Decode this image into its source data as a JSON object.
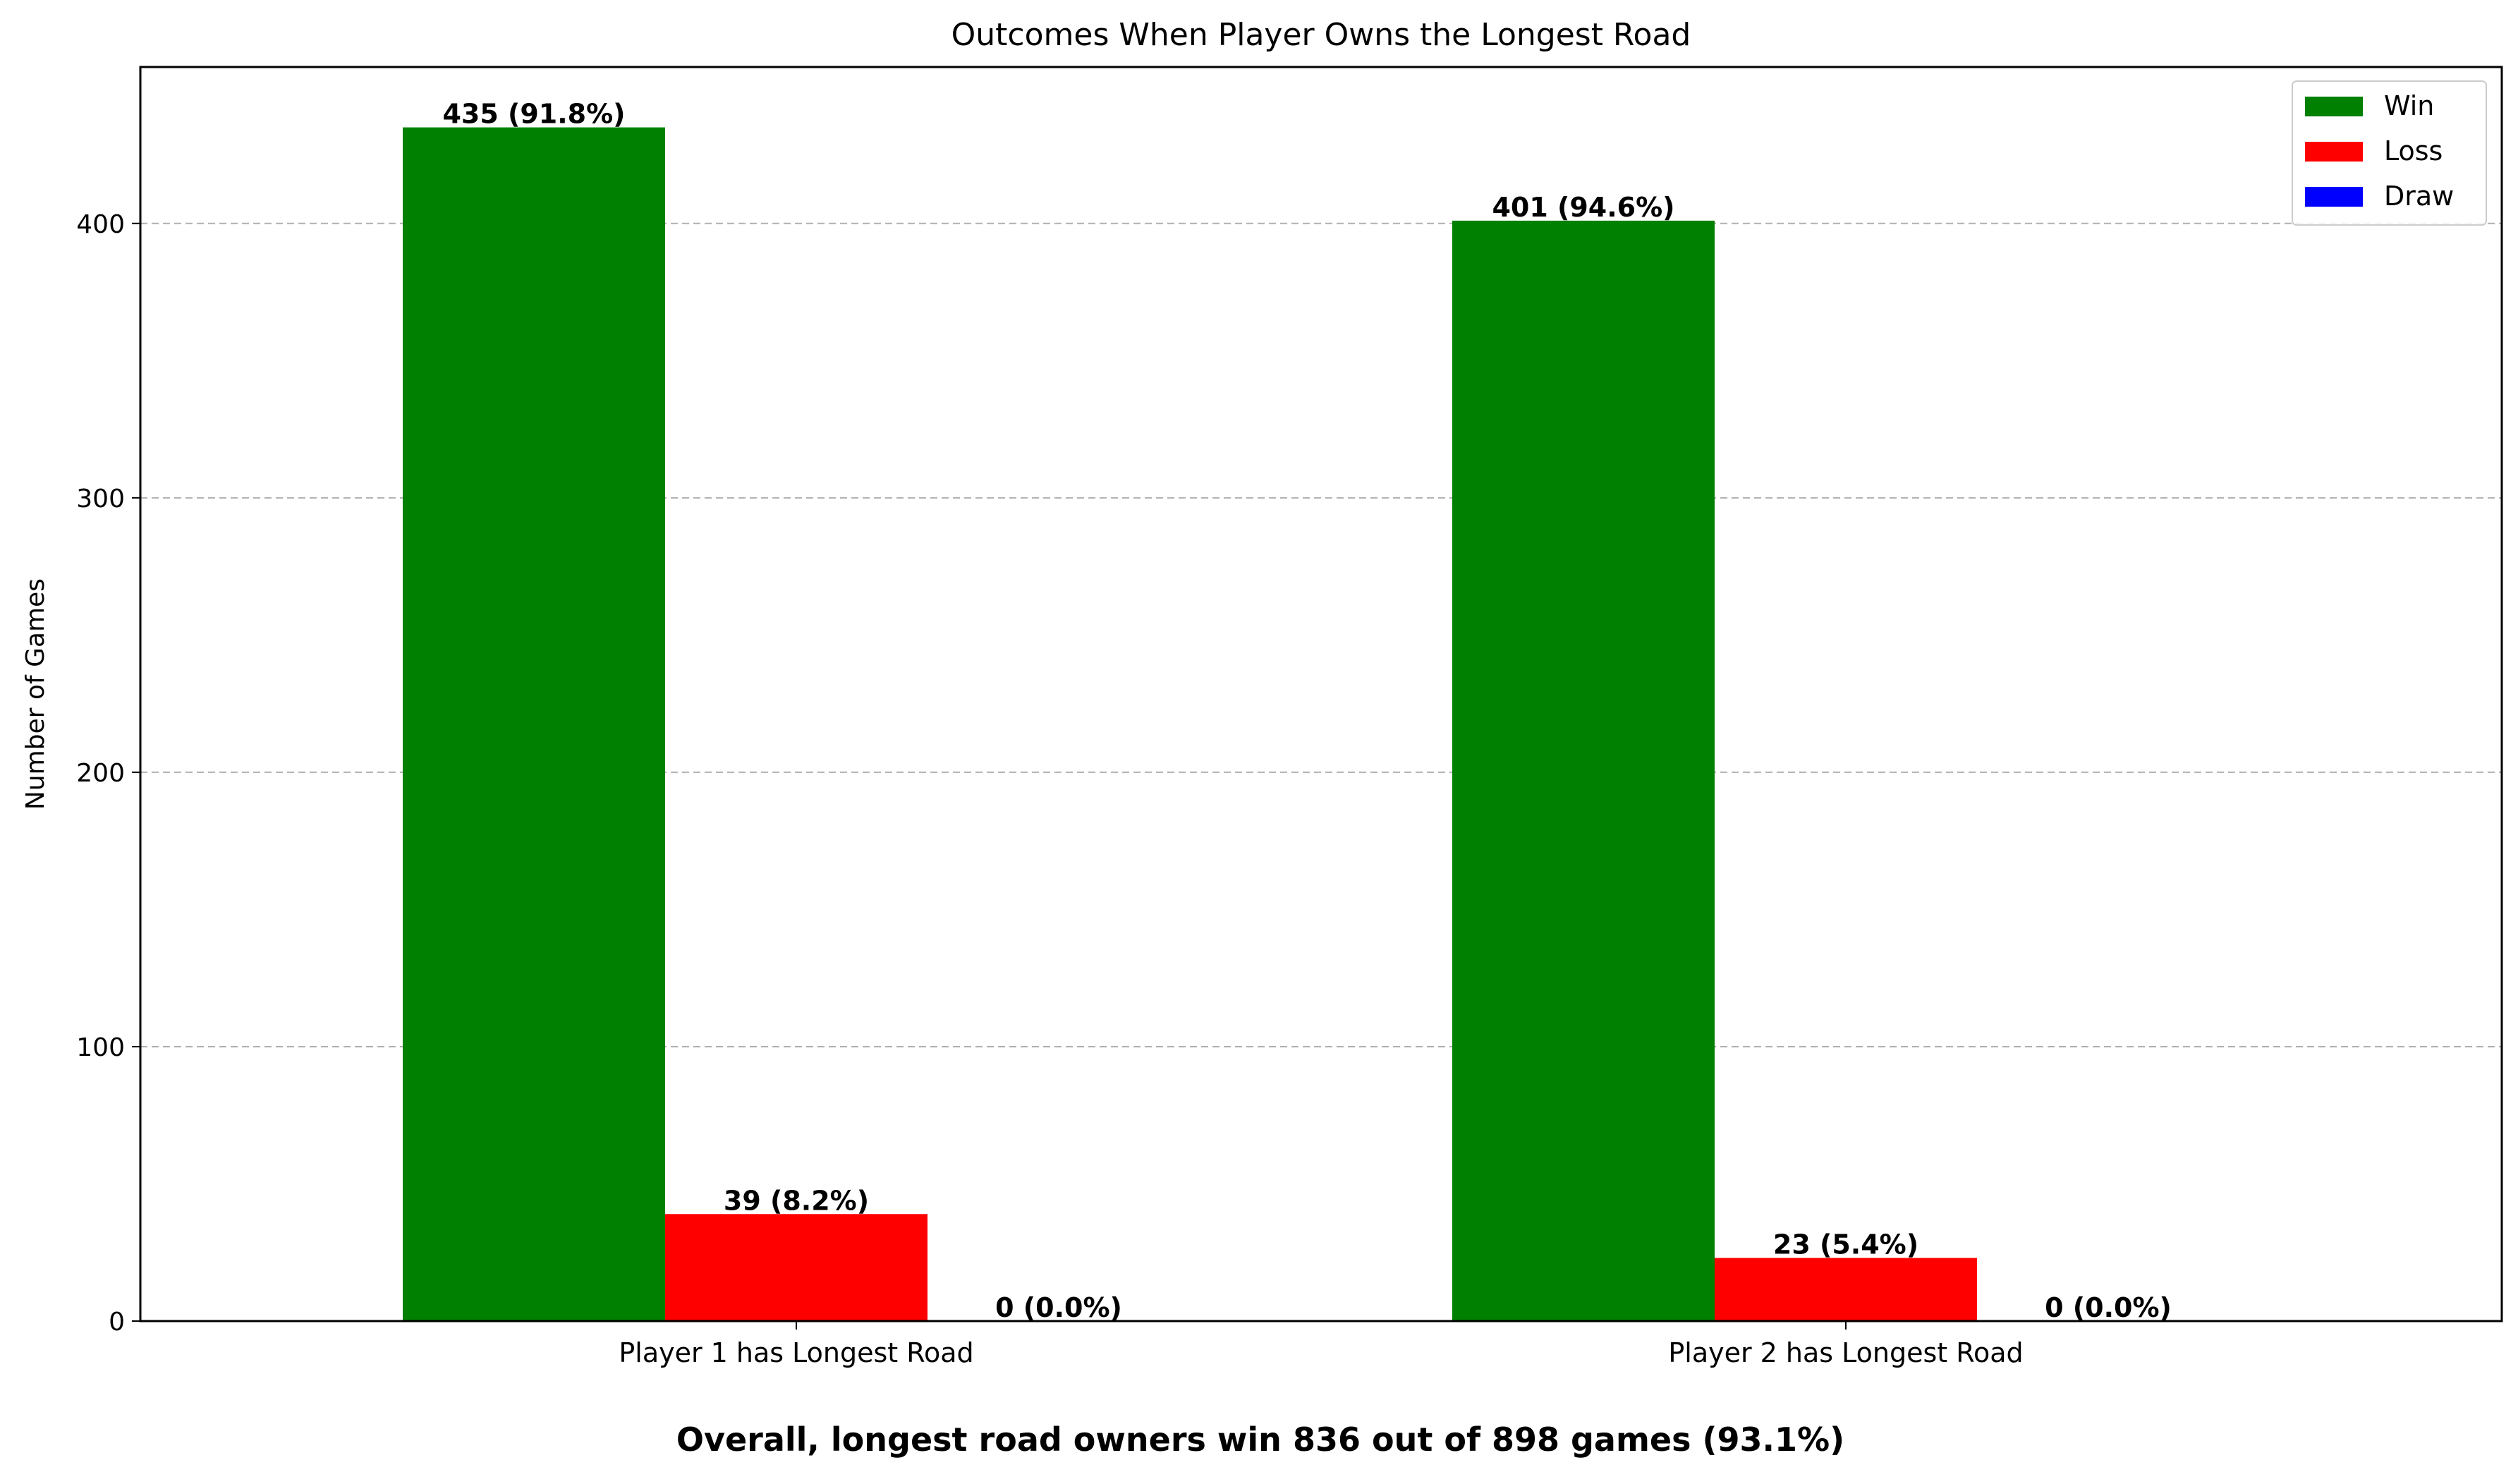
{
  "chart_data": {
    "type": "bar",
    "title": "Outcomes When Player Owns the Longest Road",
    "xlabel": "",
    "ylabel": "Number of Games",
    "categories": [
      "Player 1 has Longest Road",
      "Player 2 has Longest Road"
    ],
    "series": [
      {
        "name": "Win",
        "color": "#008000",
        "values": [
          435,
          401
        ],
        "labels": [
          "435 (91.8%)",
          "401 (94.6%)"
        ]
      },
      {
        "name": "Loss",
        "color": "#ff0000",
        "values": [
          39,
          23
        ],
        "labels": [
          "39 (8.2%)",
          "23 (5.4%)"
        ]
      },
      {
        "name": "Draw",
        "color": "#0000ff",
        "values": [
          0,
          0
        ],
        "labels": [
          "0 (0.0%)",
          "0 (0.0%)"
        ]
      }
    ],
    "ylim": [
      0,
      457
    ],
    "yticks": [
      0,
      100,
      200,
      300,
      400
    ],
    "grid": "y-dashed",
    "legend_position": "top-right",
    "footnote": "Overall, longest road owners win 836 out of 898 games (93.1%)"
  }
}
